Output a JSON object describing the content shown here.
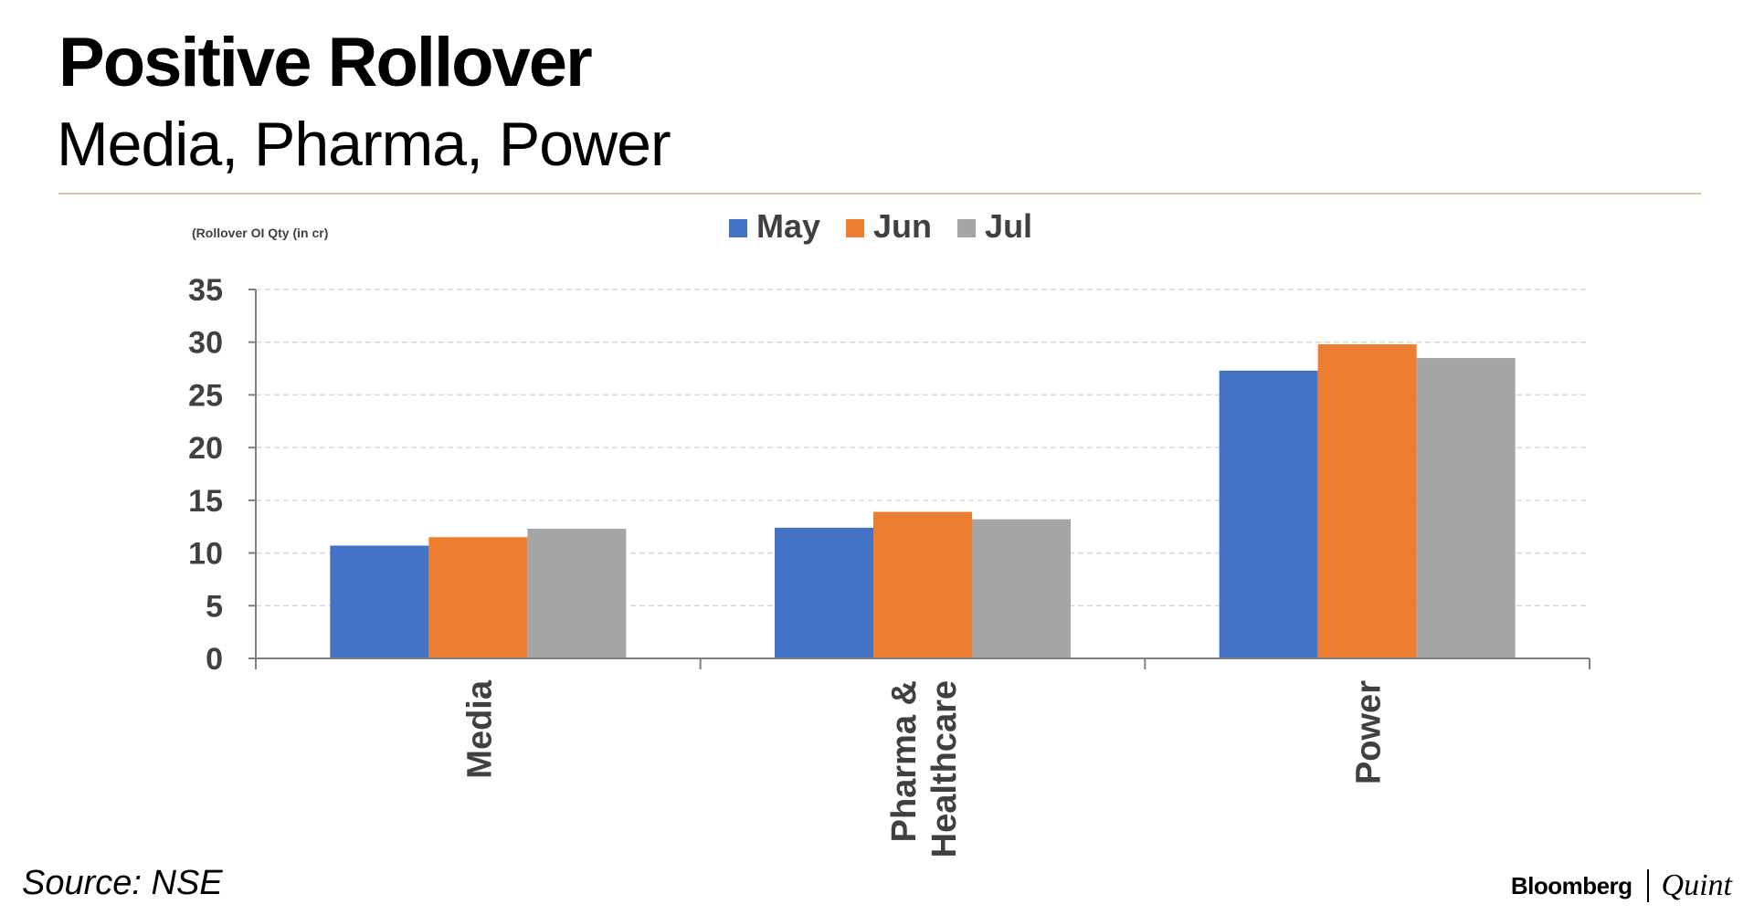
{
  "header": {
    "title": "Positive Rollover",
    "subtitle": "Media, Pharma, Power"
  },
  "footer": {
    "source": "Source: NSE",
    "brand_primary": "Bloomberg",
    "brand_secondary": "Quint"
  },
  "colors": {
    "rule": "#d8c79a",
    "grid": "#d9d9d9",
    "axis": "#7f7f7f",
    "tick_text": "#404040"
  },
  "chart_data": {
    "type": "bar",
    "title": "",
    "unit_note": "(Rollover OI Qty (in cr)",
    "categories": [
      "Media",
      "Pharma & Healthcare",
      "Power"
    ],
    "category_lines": [
      [
        "Media"
      ],
      [
        "Pharma &",
        "Healthcare"
      ],
      [
        "Power"
      ]
    ],
    "series": [
      {
        "name": "May",
        "color": "#4472c4",
        "values": [
          10.7,
          12.4,
          27.3
        ]
      },
      {
        "name": "Jun",
        "color": "#ed7d31",
        "values": [
          11.5,
          13.9,
          29.8
        ]
      },
      {
        "name": "Jul",
        "color": "#a5a5a5",
        "values": [
          12.3,
          13.2,
          28.5
        ]
      }
    ],
    "ylim": [
      0,
      35
    ],
    "yticks": [
      0,
      5,
      10,
      15,
      20,
      25,
      30,
      35
    ],
    "grid": true,
    "legend": "top-center"
  }
}
